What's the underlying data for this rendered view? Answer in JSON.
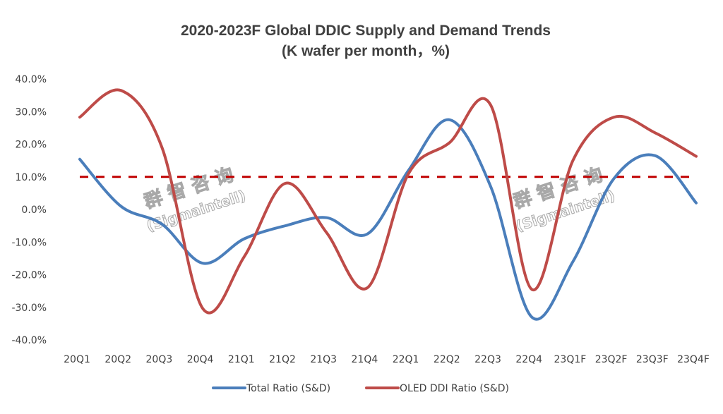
{
  "chart_data": {
    "type": "line",
    "title": "2020-2023F Global DDIC Supply and Demand Trends",
    "subtitle": "(K wafer per month，%)",
    "xlabel": "",
    "ylabel": "",
    "categories": [
      "20Q1",
      "20Q2",
      "20Q3",
      "20Q4",
      "21Q1",
      "21Q2",
      "21Q3",
      "21Q4",
      "22Q1",
      "22Q2",
      "22Q3",
      "22Q4",
      "23Q1F",
      "23Q2F",
      "23Q3F",
      "23Q4F"
    ],
    "ylim": [
      -40,
      40
    ],
    "yticks": [
      40,
      30,
      20,
      10,
      0,
      -10,
      -20,
      -30,
      -40
    ],
    "ytick_labels": [
      "40.0%",
      "30.0%",
      "20.0%",
      "10.0%",
      "0.0%",
      "-10.0%",
      "-20.0%",
      "-30.0%",
      "-40.0%"
    ],
    "grid": false,
    "smooth": true,
    "series": [
      {
        "name": "Total Ratio (S&D)",
        "color": "#4A7EBB",
        "values": [
          15.4,
          1.0,
          -4.5,
          -16.5,
          -9.0,
          -5.0,
          -2.5,
          -7.5,
          12.0,
          27.5,
          7.0,
          -33.0,
          -16.0,
          9.5,
          16.5,
          2.0
        ]
      },
      {
        "name": "OLED DDI Ratio (S&D)",
        "color": "#BE4B48",
        "values": [
          28.3,
          36.5,
          19.0,
          -30.5,
          -14.5,
          8.0,
          -7.0,
          -24.0,
          11.0,
          20.5,
          32.0,
          -24.5,
          15.0,
          28.3,
          23.5,
          16.3
        ]
      }
    ],
    "reference_line": {
      "value": 10,
      "style": "dashed",
      "color": "#C00000"
    },
    "legend": {
      "position": "bottom",
      "entries": [
        "Total Ratio (S&D)",
        "OLED DDI Ratio (S&D)"
      ]
    },
    "watermarks": [
      {
        "line1": "群 智 咨 询",
        "line2": "(Sigmaintell)"
      },
      {
        "line1": "群 智 咨 询",
        "line2": "(Sigmaintell)"
      }
    ]
  }
}
